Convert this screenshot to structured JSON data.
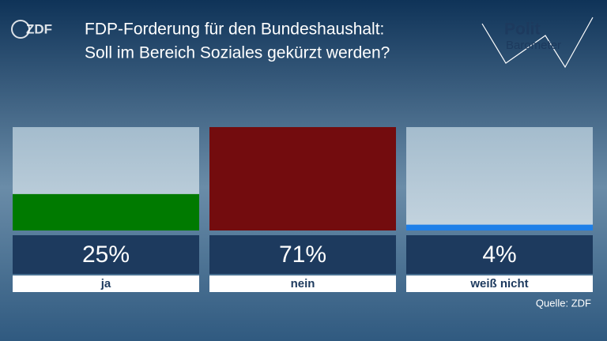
{
  "logo": "ZDF",
  "brand": {
    "line1": "Polit",
    "line2": "Barometer"
  },
  "chart_data": {
    "type": "bar",
    "title": [
      "FDP-Forderung für den Bundeshaushalt:",
      "Soll im Bereich Soziales gekürzt werden?"
    ],
    "categories": [
      "ja",
      "nein",
      "weiß nicht"
    ],
    "values": [
      25,
      71,
      4
    ],
    "value_labels": [
      "25%",
      "71%",
      "4%"
    ],
    "colors": [
      "#007a00",
      "#730c0e",
      "#1e7fe8"
    ],
    "source": "Quelle: ZDF"
  }
}
